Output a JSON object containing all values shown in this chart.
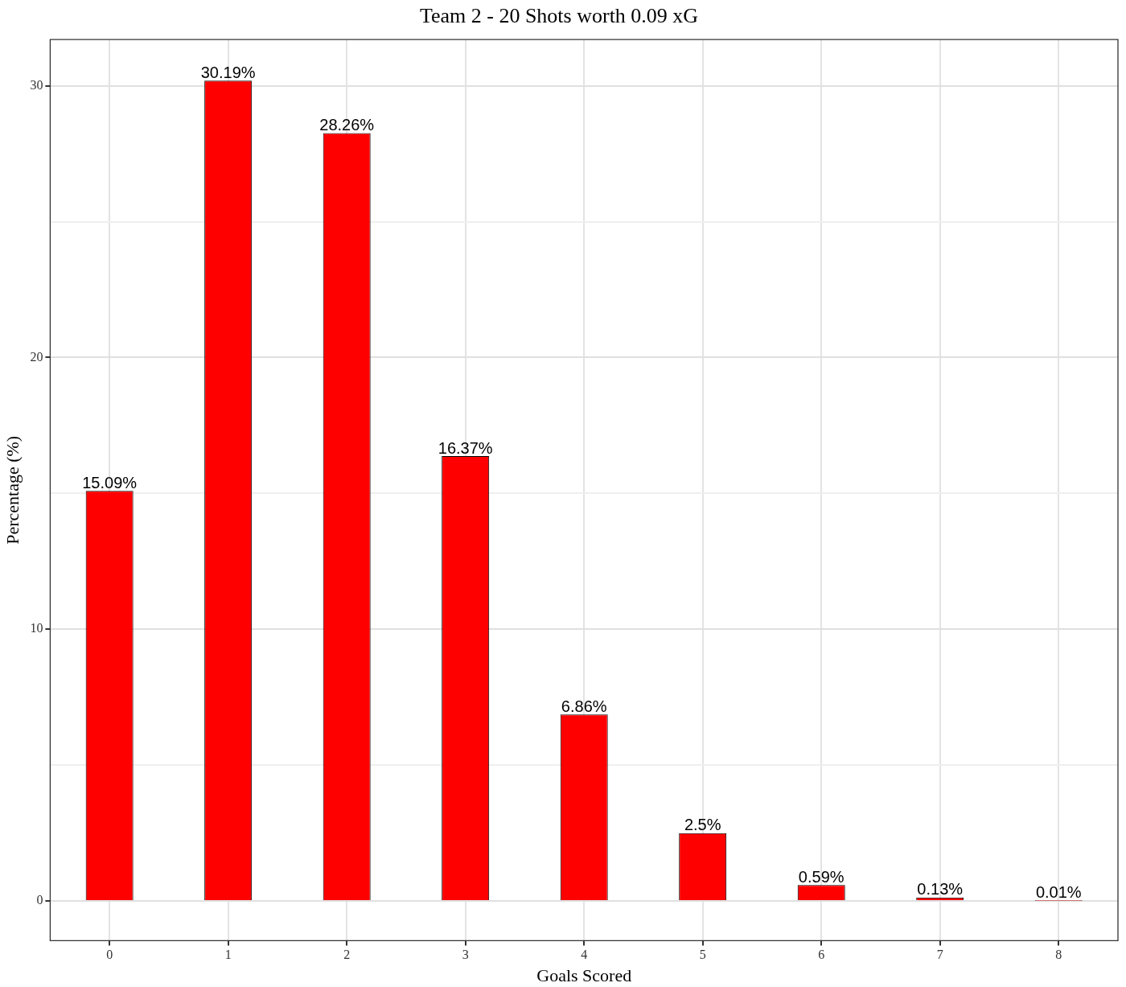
{
  "chart_data": {
    "type": "bar",
    "title": "Team 2 - 20 Shots worth 0.09 xG",
    "xlabel": "Goals Scored",
    "ylabel": "Percentage (%)",
    "categories": [
      "0",
      "1",
      "2",
      "3",
      "4",
      "5",
      "6",
      "7",
      "8"
    ],
    "values": [
      15.09,
      30.19,
      28.26,
      16.37,
      6.86,
      2.5,
      0.59,
      0.13,
      0.01
    ],
    "value_labels": [
      "15.09%",
      "30.19%",
      "28.26%",
      "16.37%",
      "6.86%",
      "2.5%",
      "0.59%",
      "0.13%",
      "0.01%"
    ],
    "color": "#ff0000",
    "ylim": [
      -1.46,
      31.7
    ],
    "yticks": [
      0,
      {
        "value": 5,
        "label": null
      },
      10,
      {
        "value": 15,
        "label": null
      },
      20,
      {
        "value": 25,
        "label": null
      },
      30
    ],
    "grid": true,
    "legend": false
  }
}
